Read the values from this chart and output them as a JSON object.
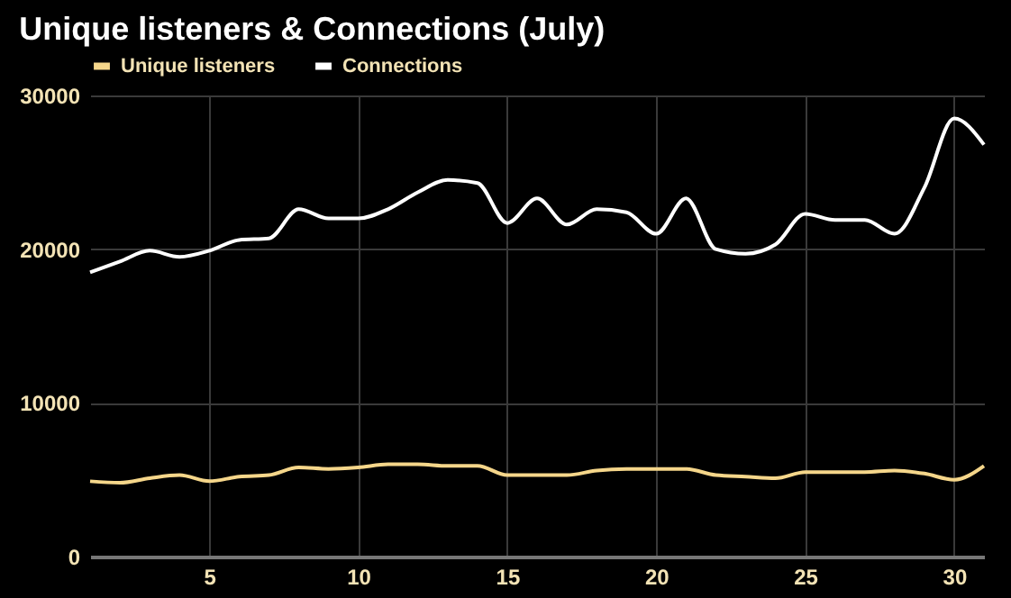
{
  "chart_data": {
    "type": "line",
    "title": "Unique listeners & Connections (July)",
    "x": [
      1,
      2,
      3,
      4,
      5,
      6,
      7,
      8,
      9,
      10,
      11,
      12,
      13,
      14,
      15,
      16,
      17,
      18,
      19,
      20,
      21,
      22,
      23,
      24,
      25,
      26,
      27,
      28,
      29,
      30,
      31
    ],
    "series": [
      {
        "name": "Unique listeners",
        "color": "#f5d68a",
        "values": [
          4900,
          4800,
          5100,
          5300,
          4900,
          5200,
          5300,
          5800,
          5700,
          5800,
          6000,
          6000,
          5900,
          5900,
          5300,
          5300,
          5300,
          5600,
          5700,
          5700,
          5700,
          5300,
          5200,
          5100,
          5500,
          5500,
          5500,
          5600,
          5400,
          5000,
          5900
        ]
      },
      {
        "name": "Connections",
        "color": "#ffffff",
        "values": [
          18500,
          19200,
          19900,
          19500,
          19900,
          20600,
          20700,
          22600,
          22000,
          22000,
          22600,
          23700,
          24500,
          24300,
          21700,
          23300,
          21600,
          22600,
          22400,
          21000,
          23300,
          20000,
          19700,
          20300,
          22300,
          21900,
          21900,
          21000,
          24000,
          28500,
          26800
        ]
      }
    ],
    "xlim": [
      1,
      31
    ],
    "xticks": [
      5,
      10,
      15,
      20,
      25,
      30
    ],
    "ylim": [
      0,
      30000
    ],
    "yticks": [
      0,
      10000,
      20000,
      30000
    ],
    "grid": true,
    "legend": "top",
    "marker": "none",
    "line_style": "solid"
  }
}
